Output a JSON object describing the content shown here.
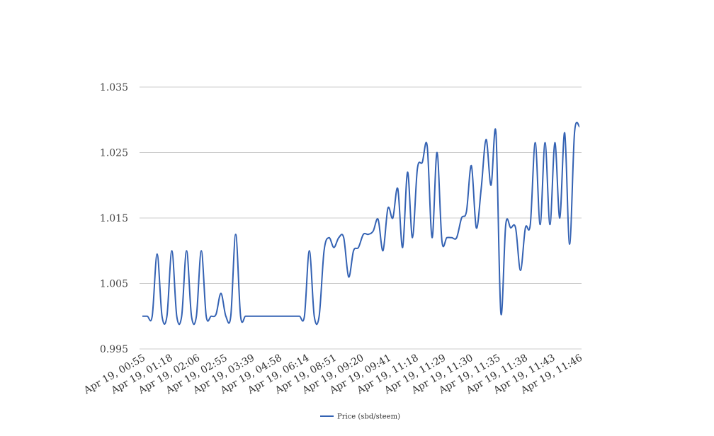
{
  "chart_data": {
    "type": "line",
    "title": "",
    "xlabel": "",
    "ylabel": "",
    "ylim": [
      0.995,
      1.035
    ],
    "yticks": [
      "0.995",
      "1.005",
      "1.015",
      "1.025",
      "1.035"
    ],
    "ytick_values": [
      0.995,
      1.005,
      1.015,
      1.025,
      1.035
    ],
    "xtick_labels": [
      "Apr 19, 00:55",
      "Apr 19, 01:18",
      "Apr 19, 02:06",
      "Apr 19, 02:55",
      "Apr 19, 03:39",
      "Apr 19, 04:58",
      "Apr 19, 06:14",
      "Apr 19, 08:51",
      "Apr 19, 09:20",
      "Apr 19, 09:41",
      "Apr 19, 11:18",
      "Apr 19, 11:29",
      "Apr 19, 11:30",
      "Apr 19, 11:35",
      "Apr 19, 11:38",
      "Apr 19, 11:43",
      "Apr 19, 11:46"
    ],
    "grid": true,
    "legend_position": "bottom",
    "series": [
      {
        "name": "Price (sbd/steem)",
        "color": "#3462b3",
        "values": [
          1.0,
          1.0,
          1.0,
          1.0095,
          1.0,
          1.0,
          1.01,
          1.0,
          1.0,
          1.01,
          1.0,
          1.0,
          1.01,
          1.0,
          1.0,
          1.0003,
          1.0035,
          1.0,
          1.0,
          1.0125,
          1.0,
          1.0,
          1.0,
          1.0,
          1.0,
          1.0,
          1.0,
          1.0,
          1.0,
          1.0,
          1.0,
          1.0,
          1.0,
          1.0,
          1.01,
          1.0,
          1.0,
          1.01,
          1.012,
          1.0105,
          1.012,
          1.012,
          1.006,
          1.01,
          1.0105,
          1.0125,
          1.0125,
          1.013,
          1.0148,
          1.01,
          1.0165,
          1.015,
          1.0195,
          1.0105,
          1.022,
          1.012,
          1.0225,
          1.0235,
          1.026,
          1.012,
          1.025,
          1.0115,
          1.012,
          1.012,
          1.012,
          1.015,
          1.016,
          1.023,
          1.0135,
          1.0195,
          1.027,
          1.02,
          1.028,
          1.0005,
          1.014,
          1.0135,
          1.0135,
          1.007,
          1.0135,
          1.014,
          1.0265,
          1.014,
          1.0265,
          1.014,
          1.0265,
          1.015,
          1.028,
          1.011,
          1.028,
          1.029
        ]
      }
    ]
  }
}
